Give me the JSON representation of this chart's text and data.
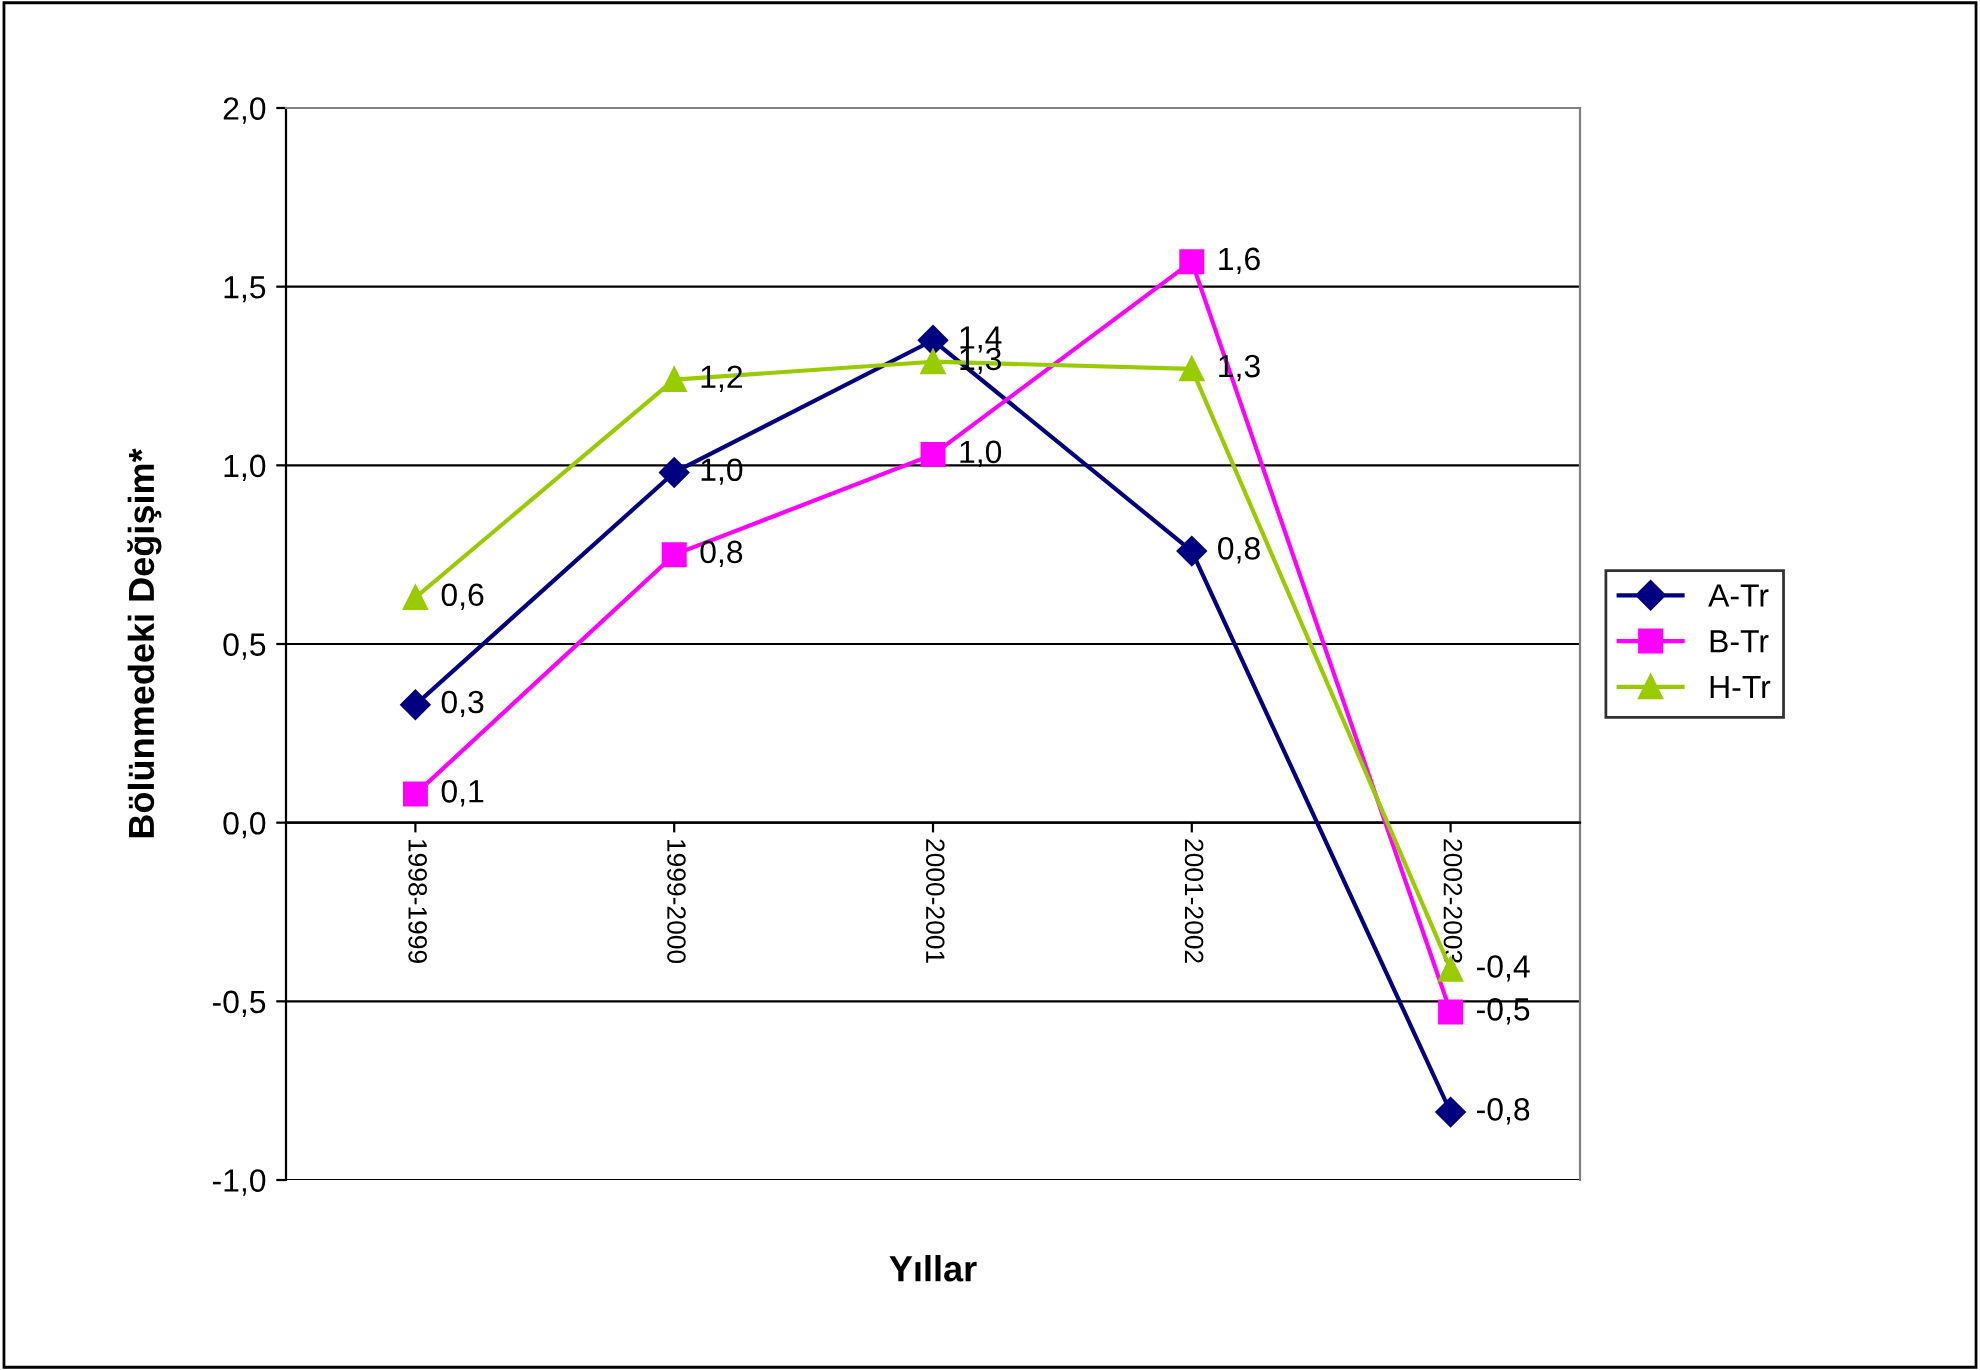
{
  "chart_data": {
    "type": "line",
    "xlabel": "Yıllar",
    "ylabel": "Bölünmedeki Değişim*",
    "categories": [
      "1998-1999",
      "1999-2000",
      "2000-2001",
      "2001-2002",
      "2002-2003"
    ],
    "series": [
      {
        "name": "A-Tr",
        "color": "#000080",
        "marker": "diamond",
        "values": [
          0.33,
          0.98,
          1.35,
          0.76,
          -0.81
        ],
        "value_labels": [
          "0,3",
          "1,0",
          "1,4",
          "0,8",
          "-0,8"
        ]
      },
      {
        "name": "B-Tr",
        "color": "#ff00ff",
        "marker": "square",
        "values": [
          0.08,
          0.75,
          1.03,
          1.57,
          -0.53
        ],
        "value_labels": [
          "0,1",
          "0,8",
          "1,0",
          "1,6",
          "-0,5"
        ]
      },
      {
        "name": "H-Tr",
        "color": "#99cc00",
        "marker": "triangle",
        "values": [
          0.63,
          1.24,
          1.29,
          1.27,
          -0.41
        ],
        "value_labels": [
          "0,6",
          "1,2",
          "1,3",
          "1,3",
          "-0,4"
        ]
      }
    ],
    "ylim": [
      -1.0,
      2.0
    ],
    "yticks": [
      {
        "value": -1.0,
        "label": "-1,0"
      },
      {
        "value": -0.5,
        "label": "-0,5"
      },
      {
        "value": 0.0,
        "label": "0,0"
      },
      {
        "value": 0.5,
        "label": "0,5"
      },
      {
        "value": 1.0,
        "label": "1,0"
      },
      {
        "value": 1.5,
        "label": "1,5"
      },
      {
        "value": 2.0,
        "label": "2,0"
      }
    ],
    "grid": "y",
    "legend": "right",
    "line_style": "solid"
  }
}
